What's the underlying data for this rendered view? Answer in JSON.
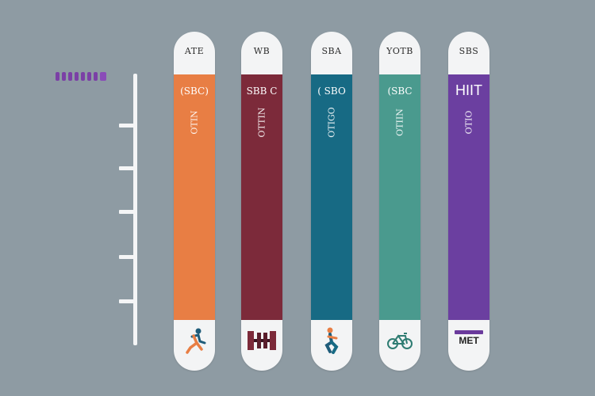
{
  "colors": {
    "background": "#8e9ba3",
    "axis": "#f4f5f6",
    "pill": "#f3f4f5",
    "legend": "#7b40a6"
  },
  "chart_data": {
    "type": "bar",
    "categories": [
      "ATE",
      "WB",
      "SBA",
      "YOTB",
      "SBS"
    ],
    "series": [
      {
        "values": [
          1,
          1,
          1,
          1,
          1
        ]
      }
    ],
    "bars": [
      {
        "cap": "ATE",
        "value_text": "(SBC)",
        "name_text": "OTIN",
        "color": "#e87e44",
        "icon": "runner-icon",
        "bottom_label": ""
      },
      {
        "cap": "WB",
        "value_text": "SBB C",
        "name_text": "OTTIN",
        "color": "#7c2a3a",
        "icon": "weightlifting-icon",
        "bottom_label": ""
      },
      {
        "cap": "SBA",
        "value_text": "( SBO",
        "name_text": "OTIGO",
        "color": "#176a84",
        "icon": "squat-icon",
        "bottom_label": ""
      },
      {
        "cap": "YOTB",
        "value_text": "(SBC",
        "name_text": "OTIIN",
        "color": "#4a9a8e",
        "icon": "bicycle-icon",
        "bottom_label": ""
      },
      {
        "cap": "SBS",
        "value_text": "HIIT",
        "name_text": "OTIO",
        "color": "#6b3fa0",
        "icon": "",
        "bottom_label": "MET"
      }
    ],
    "ylim": [
      0,
      1
    ],
    "grid": false,
    "axis_ticks": 6
  }
}
